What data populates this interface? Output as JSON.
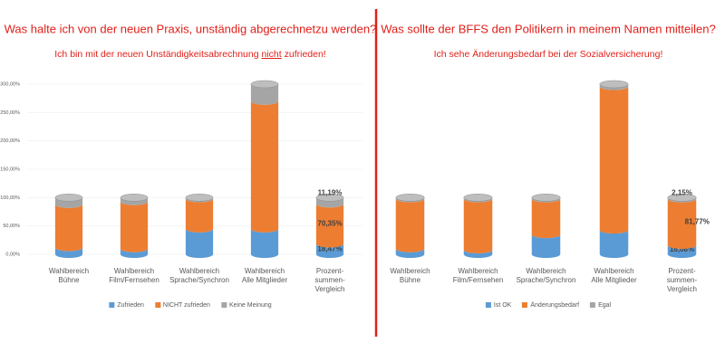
{
  "chart_data": [
    {
      "type": "bar",
      "stacked": true,
      "title": "Was halte ich von der neuen Praxis, unständig abgerechnetzu werden?",
      "subtitle": [
        "Ich bin mit der neuen Unständigkeitsabrechnung ",
        "nicht",
        " zufrieden!"
      ],
      "categories": [
        "Wahlbereich\nBühne",
        "Wahlbereich\nFilm/Fernsehen",
        "Wahlbereich\nSprache/Synchron",
        "Wahlbereich\nAlle Mitglieder",
        "Prozent-\nsummen-\nVergleich"
      ],
      "series": [
        {
          "name": "Zufrieden",
          "color": "#5b9bd5",
          "values": [
            12,
            10,
            45,
            45,
            18.47
          ],
          "value_labels": [
            null,
            null,
            null,
            null,
            "18,47%"
          ]
        },
        {
          "name": "NICHT zufrieden",
          "color": "#ed7d31",
          "values": [
            76,
            83,
            53,
            225,
            70.35
          ],
          "value_labels": [
            null,
            null,
            null,
            null,
            "70,35%"
          ]
        },
        {
          "name": "Keine Meinung",
          "color": "#a5a5a5",
          "values": [
            12,
            7,
            2,
            30,
            11.19
          ],
          "value_labels": [
            null,
            null,
            null,
            null,
            "11,19%"
          ]
        }
      ],
      "ylim": [
        0,
        300
      ],
      "yticks": [
        {
          "value": 0,
          "label": "0,00%"
        },
        {
          "value": 50,
          "label": "50,00%"
        },
        {
          "value": 100,
          "label": "100,00%"
        },
        {
          "value": 150,
          "label": "150,00%"
        },
        {
          "value": 200,
          "label": "200,00%"
        },
        {
          "value": 250,
          "label": "250,00%"
        },
        {
          "value": 300,
          "label": "300,00%"
        }
      ],
      "grid": true
    },
    {
      "type": "bar",
      "stacked": true,
      "title": "Was sollte der BFFS den Politikern in meinem Namen mitteilen?",
      "subtitle": [
        "Ich sehe Änderungsbedarf bei der Sozialversicherung!"
      ],
      "categories": [
        "Wahlbereich\nBühne",
        "Wahlbereich\nFilm/Fernsehen",
        "Wahlbereich\nSprache/Synchron",
        "Wahlbereich\nAlle Mitglieder",
        "Prozent-\nsummen-\nVergleich"
      ],
      "series": [
        {
          "name": "Ist OK",
          "color": "#5b9bd5",
          "values": [
            10,
            8,
            35,
            43,
            16.08
          ],
          "value_labels": [
            null,
            null,
            null,
            null,
            "16,08%"
          ]
        },
        {
          "name": "Änderungsbedarf",
          "color": "#ed7d31",
          "values": [
            88,
            90,
            63,
            253,
            81.77
          ],
          "value_labels": [
            null,
            null,
            null,
            null,
            "81,77%"
          ]
        },
        {
          "name": "Egal",
          "color": "#a5a5a5",
          "values": [
            2,
            2,
            2,
            4,
            2.15
          ],
          "value_labels": [
            null,
            null,
            null,
            null,
            "2,15%"
          ]
        }
      ],
      "ylim": [
        0,
        300
      ],
      "grid": false
    }
  ]
}
